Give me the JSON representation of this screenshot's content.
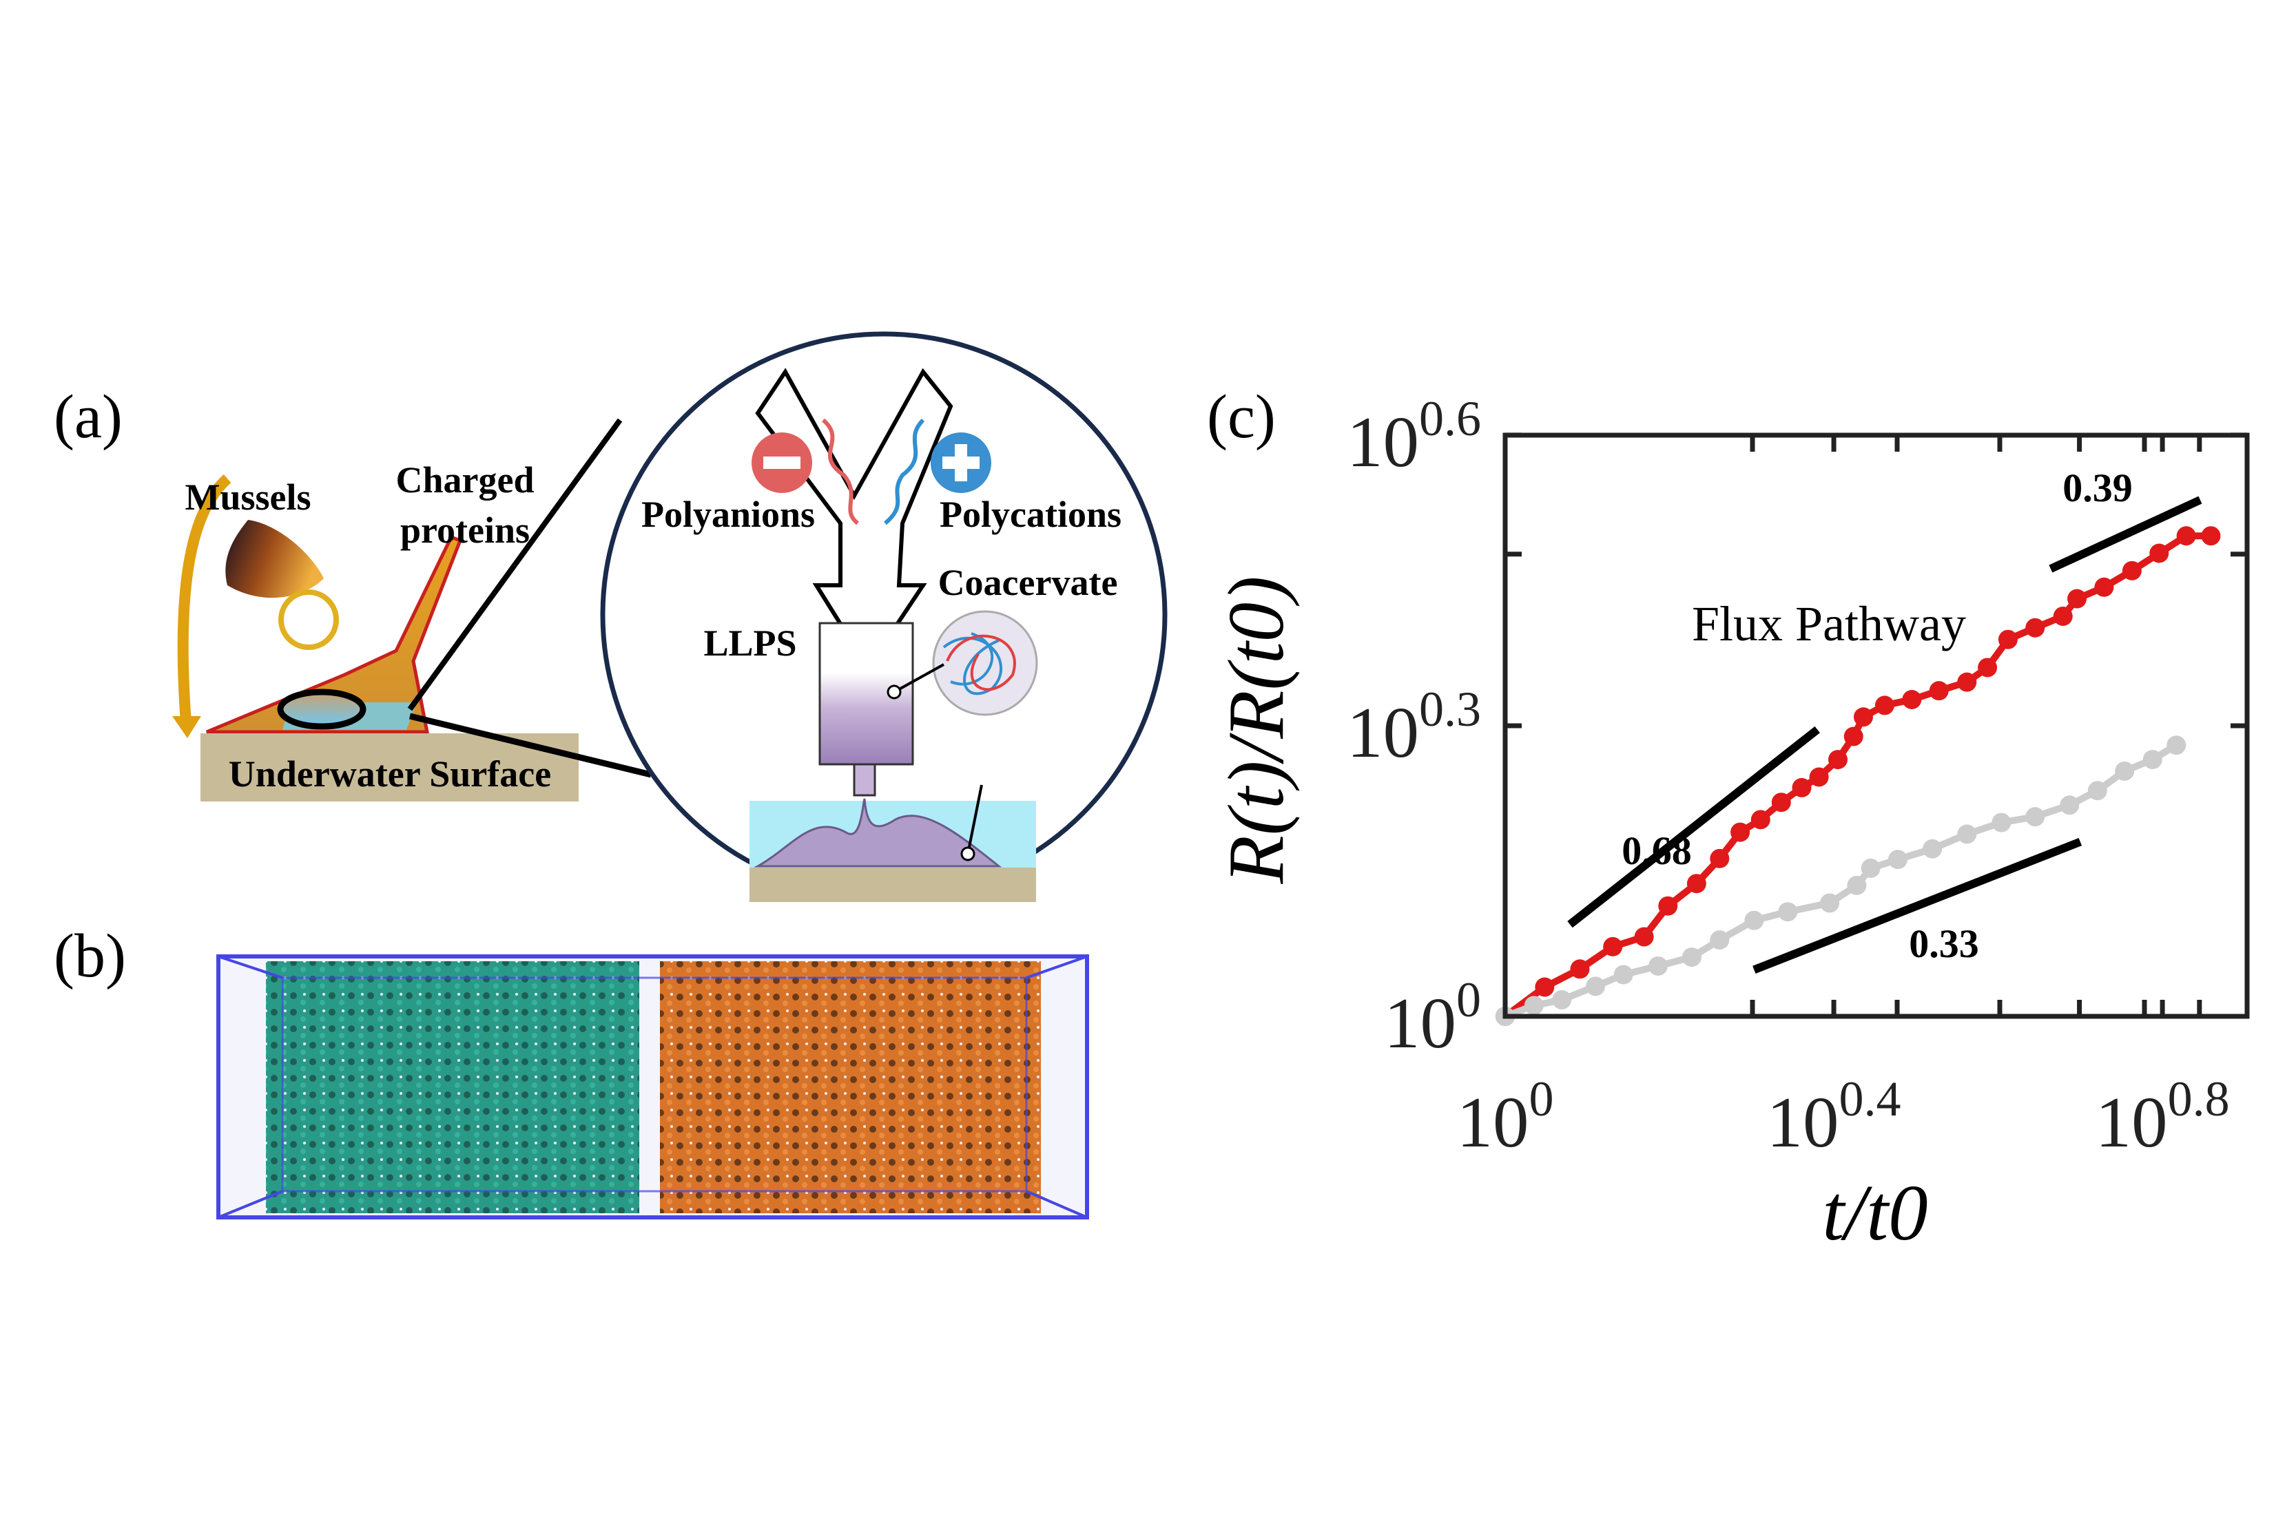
{
  "panels": {
    "a": {
      "label": "(a)",
      "mussels": "Mussels",
      "charged_line1": "Charged",
      "charged_line2": "proteins",
      "surface": "Underwater Surface",
      "polyanions": "Polyanions",
      "polycations": "Polycations",
      "coacervate": "Coacervate",
      "llps": "LLPS",
      "minus_icon": "minus-circle-icon",
      "plus_icon": "plus-circle-icon"
    },
    "b": {
      "label": "(b)",
      "colors": {
        "box": "#4646e6",
        "left_phase": "#2a9a88",
        "right_phase": "#d8742a"
      }
    },
    "c": {
      "label": "(c)"
    }
  },
  "chart_data": {
    "type": "line",
    "title": "",
    "xlabel": "t/t0",
    "ylabel": "R(t)/R(t0)",
    "xscale": "log",
    "yscale": "log",
    "xlim": [
      1,
      8
    ],
    "ylim": [
      1,
      3.98
    ],
    "grid": false,
    "x_ticks": [
      {
        "value": 1,
        "base": "10",
        "exp": "0"
      },
      {
        "value": 2.512,
        "base": "10",
        "exp": "0.4"
      },
      {
        "value": 6.31,
        "base": "10",
        "exp": "0.8"
      }
    ],
    "x_minor_ticks": [
      2,
      3,
      4,
      5,
      6,
      7
    ],
    "y_ticks": [
      {
        "value": 1,
        "base": "10",
        "exp": "0"
      },
      {
        "value": 1.995,
        "base": "10",
        "exp": "0.3"
      },
      {
        "value": 3.981,
        "base": "10",
        "exp": "0.6"
      }
    ],
    "y_minor_ticks": [
      3
    ],
    "series": [
      {
        "color": "#e01a1a",
        "markers": true,
        "x": [
          1,
          1.117,
          1.233,
          1.352,
          1.476,
          1.578,
          1.71,
          1.824,
          1.932,
          2.046,
          2.168,
          2.296,
          2.41,
          2.541,
          2.655,
          2.729,
          2.897,
          3.126,
          3.373,
          3.648,
          3.864,
          4.093,
          4.416,
          4.775,
          4.966,
          5.358,
          5.794,
          6.252,
          6.745,
          7.228
        ],
        "y": [
          1,
          1.072,
          1.119,
          1.18,
          1.208,
          1.3,
          1.371,
          1.455,
          1.549,
          1.596,
          1.663,
          1.722,
          1.766,
          1.841,
          1.945,
          2.037,
          2.094,
          2.123,
          2.168,
          2.213,
          2.291,
          2.449,
          2.518,
          2.588,
          2.698,
          2.773,
          2.884,
          3.006,
          3.133,
          3.133
        ]
      },
      {
        "color": "#cccccc",
        "markers": true,
        "x": [
          1,
          1.084,
          1.172,
          1.288,
          1.393,
          1.535,
          1.687,
          1.824,
          2.009,
          2.208,
          2.483,
          2.679,
          2.786,
          3.006,
          3.311,
          3.648,
          4.018,
          4.416,
          4.864,
          5.26,
          5.675,
          6.138,
          6.561
        ],
        "y": [
          1,
          1.026,
          1.04,
          1.074,
          1.104,
          1.127,
          1.151,
          1.199,
          1.256,
          1.282,
          1.309,
          1.365,
          1.422,
          1.452,
          1.489,
          1.542,
          1.585,
          1.607,
          1.652,
          1.71,
          1.791,
          1.841,
          1.905
        ]
      }
    ],
    "reference_lines": [
      {
        "label": "0.68",
        "x": [
          1.199,
          2.399
        ],
        "y": [
          1.244,
          1.977
        ]
      },
      {
        "label": "0.33",
        "x": [
          2.009,
          5.012
        ],
        "y": [
          1.117,
          1.514
        ]
      },
      {
        "label": "0.39",
        "x": [
          4.613,
          7.015
        ],
        "y": [
          2.897,
          3.412
        ]
      }
    ],
    "annotation": "Flux Pathway"
  }
}
